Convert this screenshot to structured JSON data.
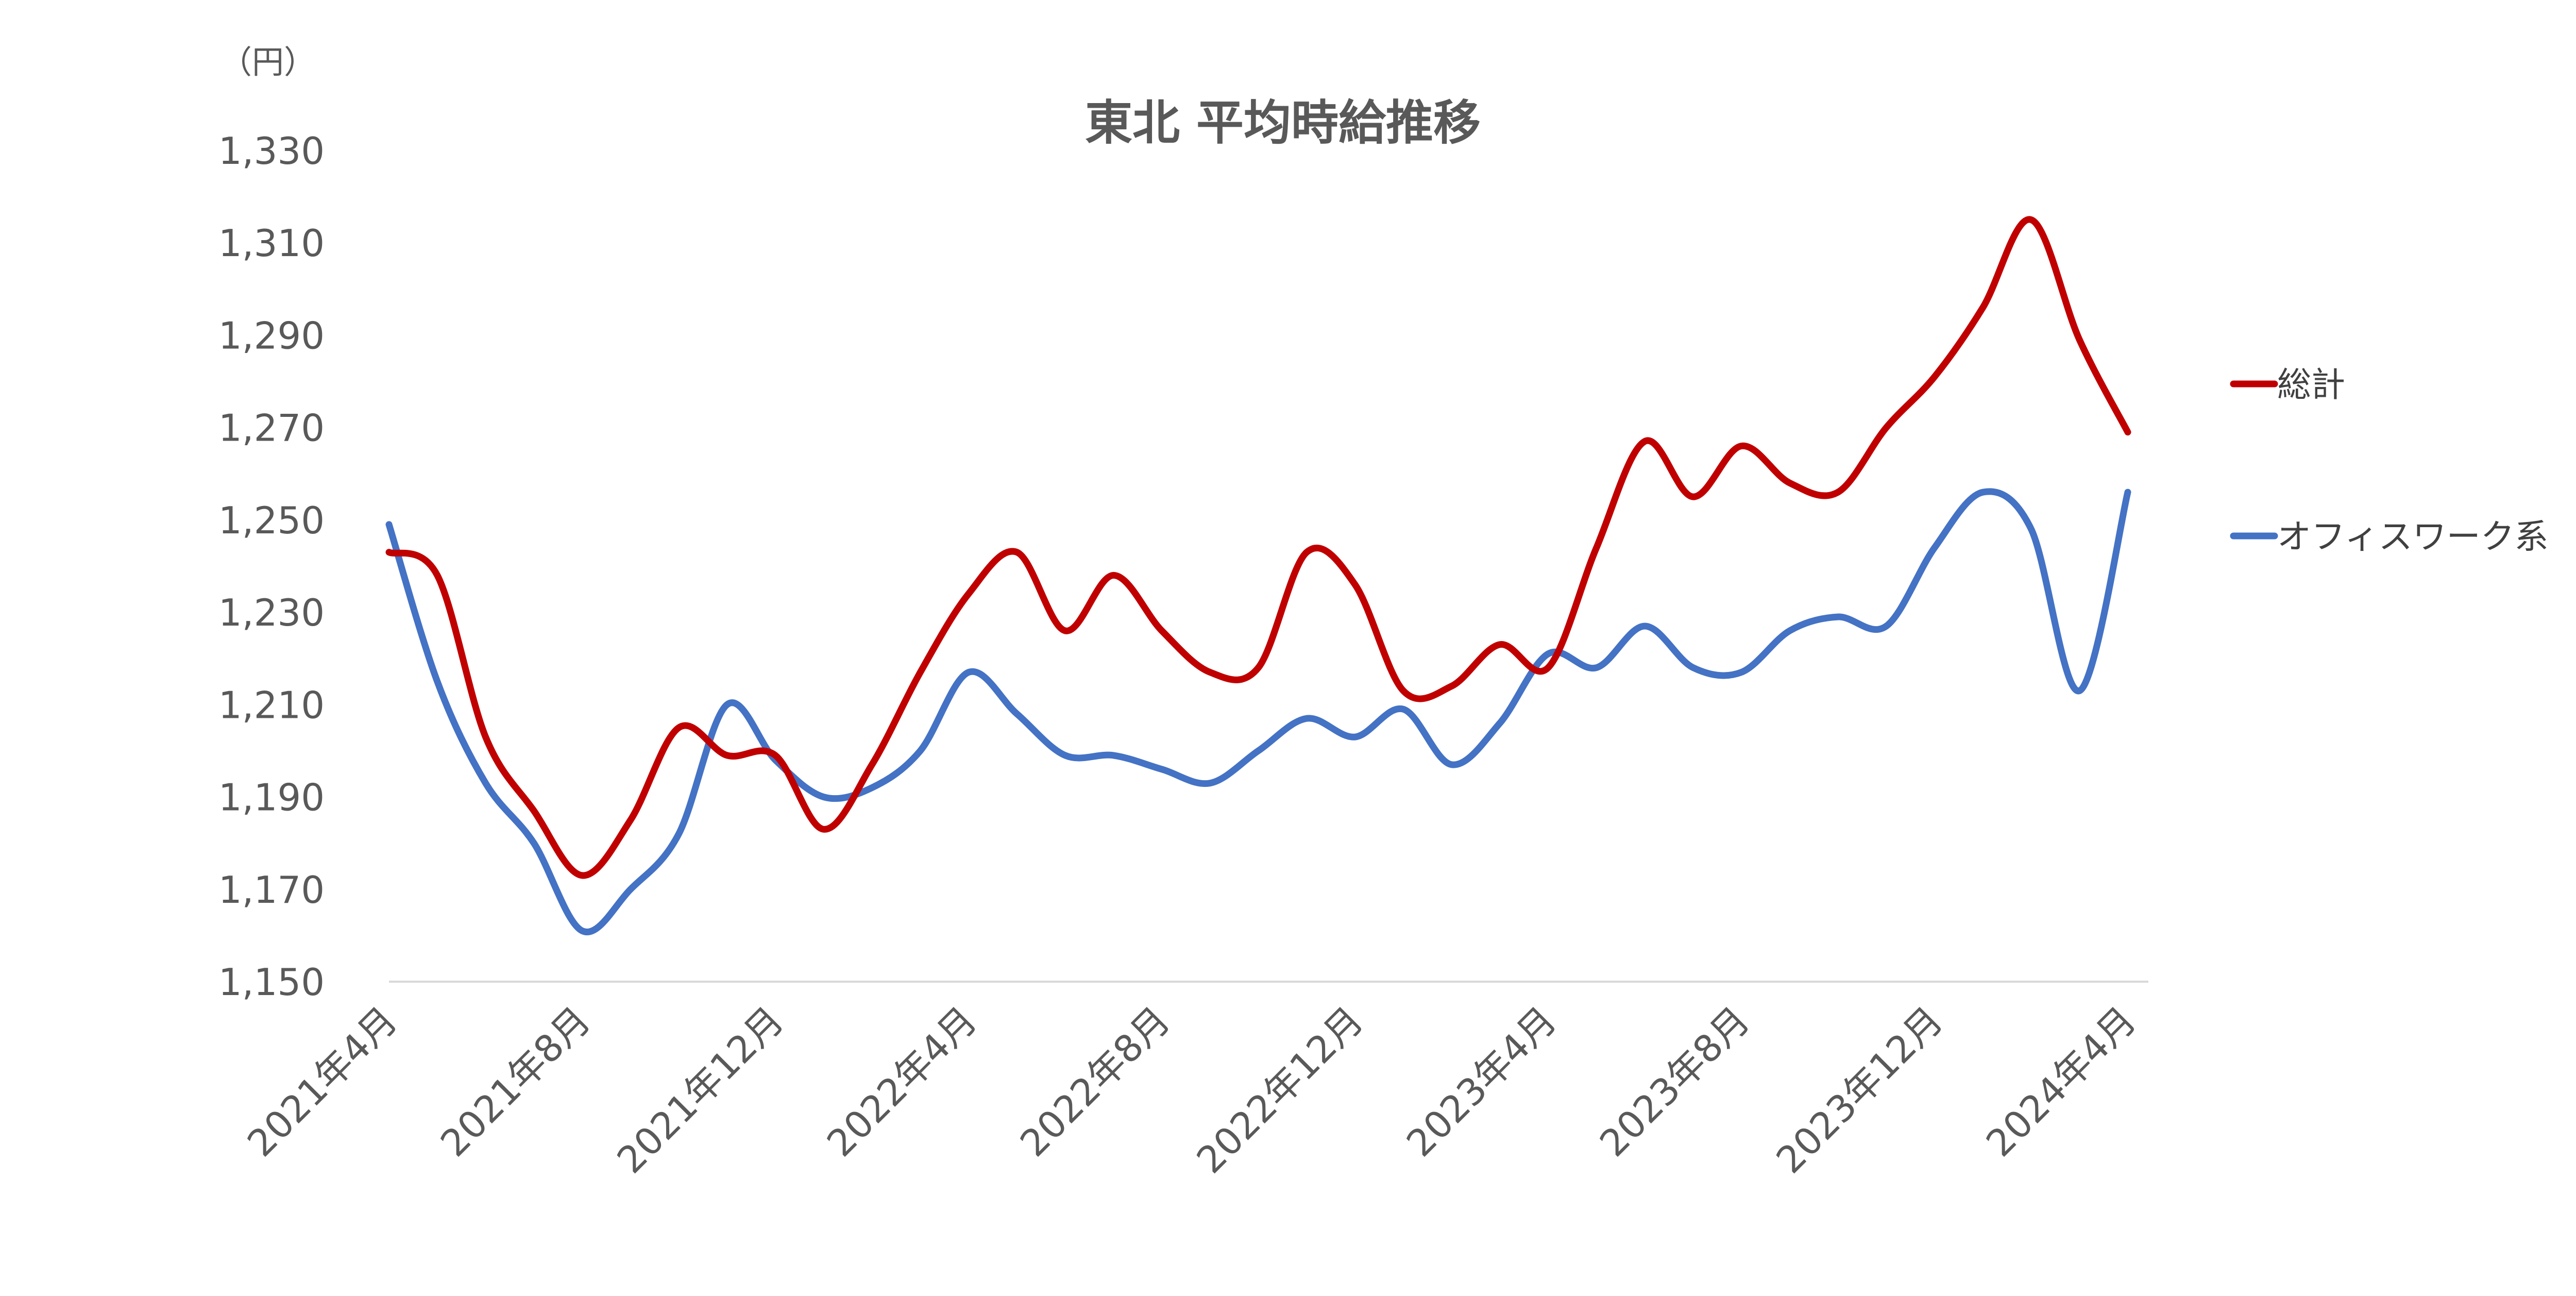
{
  "chart_data": {
    "type": "line",
    "title": "東北 平均時給推移",
    "unit_label": "（円）",
    "xlabel": "",
    "ylabel": "",
    "ylim": [
      1150,
      1330
    ],
    "yticks": [
      1150,
      1170,
      1190,
      1210,
      1230,
      1250,
      1270,
      1290,
      1310,
      1330
    ],
    "ytick_labels": [
      "1,150",
      "1,170",
      "1,190",
      "1,210",
      "1,230",
      "1,250",
      "1,270",
      "1,290",
      "1,310",
      "1,330"
    ],
    "x": [
      "2021年4月",
      "2021年5月",
      "2021年6月",
      "2021年7月",
      "2021年8月",
      "2021年9月",
      "2021年10月",
      "2021年11月",
      "2021年12月",
      "2022年1月",
      "2022年2月",
      "2022年3月",
      "2022年4月",
      "2022年5月",
      "2022年6月",
      "2022年7月",
      "2022年8月",
      "2022年9月",
      "2022年10月",
      "2022年11月",
      "2022年12月",
      "2023年1月",
      "2023年2月",
      "2023年3月",
      "2023年4月",
      "2023年5月",
      "2023年6月",
      "2023年7月",
      "2023年8月",
      "2023年9月",
      "2023年10月",
      "2023年11月",
      "2023年12月",
      "2024年1月",
      "2024年2月",
      "2024年3月",
      "2024年4月"
    ],
    "xtick_labels": [
      "2021年4月",
      "2021年8月",
      "2021年12月",
      "2022年4月",
      "2022年8月",
      "2022年12月",
      "2023年4月",
      "2023年8月",
      "2023年12月",
      "2024年4月"
    ],
    "xtick_indices": [
      0,
      4,
      8,
      12,
      16,
      20,
      24,
      28,
      32,
      36
    ],
    "series": [
      {
        "name": "総計",
        "color": "#C00000",
        "values": [
          1243,
          1238,
          1203,
          1187,
          1173,
          1185,
          1205,
          1199,
          1199,
          1183,
          1197,
          1217,
          1234,
          1243,
          1226,
          1238,
          1226,
          1217,
          1218,
          1243,
          1236,
          1213,
          1214,
          1223,
          1218,
          1244,
          1267,
          1255,
          1266,
          1258,
          1256,
          1270,
          1281,
          1296,
          1315,
          1289,
          1269
        ]
      },
      {
        "name": "オフィスワーク系",
        "color": "#4472C4",
        "values": [
          1249,
          1215,
          1193,
          1180,
          1161,
          1170,
          1182,
          1210,
          1198,
          1190,
          1192,
          1200,
          1217,
          1208,
          1199,
          1199,
          1196,
          1193,
          1200,
          1207,
          1203,
          1209,
          1197,
          1206,
          1221,
          1218,
          1227,
          1218,
          1217,
          1226,
          1229,
          1227,
          1244,
          1256,
          1248,
          1213,
          1256
        ]
      }
    ],
    "legend_position": "right",
    "grid": false
  }
}
